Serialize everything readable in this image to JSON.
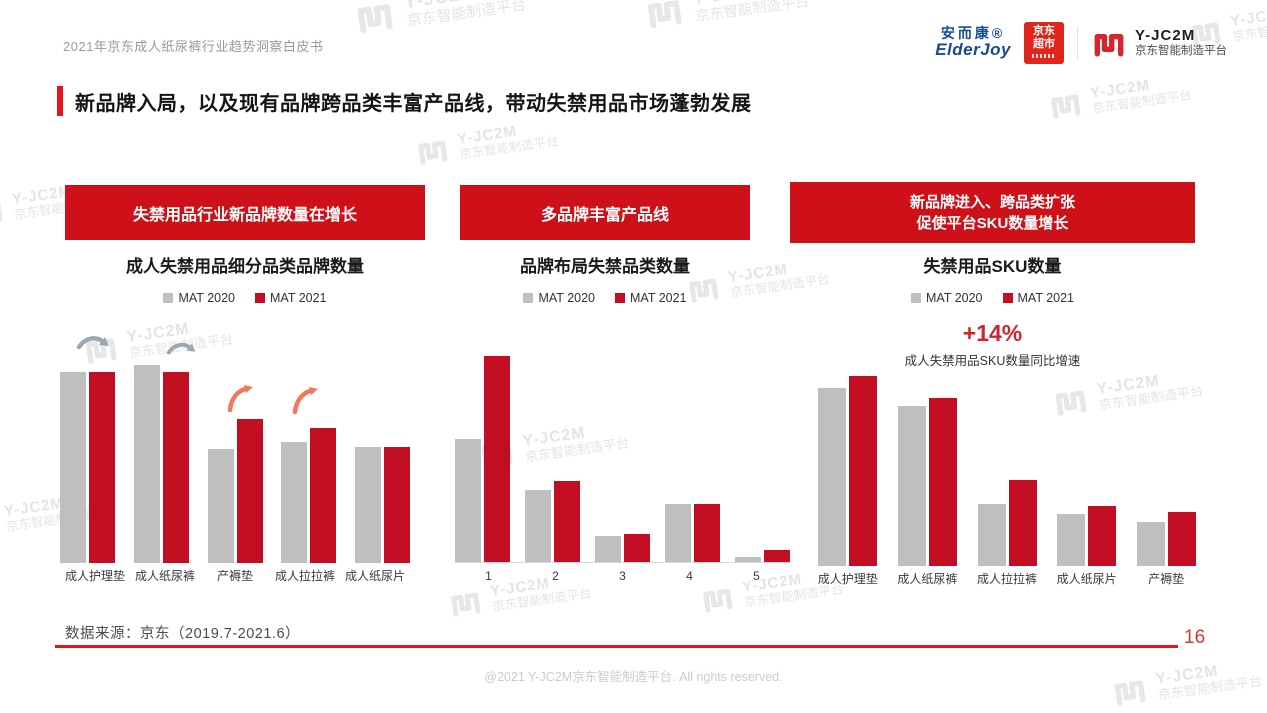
{
  "page": {
    "header_left": "2021年京东成人纸尿裤行业趋势洞察白皮书",
    "title": "新品牌入局，以及现有品牌跨品类丰富产品线，带动失禁用品市场蓬勃发展",
    "source_note": "数据来源：京东（2019.7-2021.6）",
    "page_number": "16",
    "footer": "@2021 Y-JC2M京东智能制造平台. All rights reserved."
  },
  "logos": {
    "elderjoy_cn": "安而康®",
    "elderjoy_en": "ElderJoy",
    "jd_line1": "京东",
    "jd_line2": "超市",
    "yjc2m_name": "Y-JC2M",
    "yjc2m_sub": "京东智能制造平台"
  },
  "watermark": {
    "name": "Y-JC2M",
    "sub": "京东智能制造平台"
  },
  "legend": {
    "mat2020": "MAT 2020",
    "mat2021": "MAT 2021"
  },
  "panels": [
    {
      "banner": "失禁用品行业新品牌数量在增长",
      "chart_title": "成人失禁用品细分品类品牌数量"
    },
    {
      "banner": "多品牌丰富产品线",
      "chart_title": "品牌布局失禁品类数量"
    },
    {
      "banner_line1": "新品牌进入、跨品类扩张",
      "banner_line2": "促使平台SKU数量增长",
      "chart_title": "失禁用品SKU数量",
      "callout_value": "+14%",
      "callout_label": "成人失禁用品SKU数量同比增速"
    }
  ],
  "colors": {
    "banner_red": "#ce1118",
    "bar_2020": "#bfbfbf",
    "bar_2021": "#c30d23",
    "accent_red": "#e8131d",
    "callout_red": "#d0242c",
    "page_number_red": "#d6362f",
    "arrow_gray": "#9aa8b6",
    "arrow_orange": "#f07a58",
    "brand_blue": "#164b92",
    "jd_red": "#e1251b",
    "logo_red": "#d9232e"
  },
  "chart_data": [
    {
      "type": "bar",
      "title": "成人失禁用品细分品类品牌数量",
      "categories": [
        "成人护理垫",
        "成人纸尿裤",
        "产褥垫",
        "成人拉拉裤",
        "成人纸尿片"
      ],
      "series": [
        {
          "name": "MAT 2020",
          "color_key": "bar_2020",
          "values": [
            82,
            85,
            49,
            52,
            50
          ]
        },
        {
          "name": "MAT 2021",
          "color_key": "bar_2021",
          "values": [
            82,
            82,
            62,
            58,
            50
          ]
        }
      ],
      "ylim": [
        0,
        100
      ],
      "value_unit": "relative bar height % (y-axis unlabeled in source)",
      "legend_position": "top",
      "grid": false,
      "annotations": [
        "flat/stable gray arrows over 成人护理垫 and 成人纸尿裤",
        "orange growth arrows over 产褥垫 and 成人拉拉裤"
      ]
    },
    {
      "type": "bar",
      "title": "品牌布局失禁品类数量",
      "categories": [
        "1",
        "2",
        "3",
        "4",
        "5"
      ],
      "series": [
        {
          "name": "MAT 2020",
          "color_key": "bar_2020",
          "values": [
            53,
            31,
            11,
            25,
            2
          ]
        },
        {
          "name": "MAT 2021",
          "color_key": "bar_2021",
          "values": [
            89,
            35,
            12,
            25,
            5
          ]
        }
      ],
      "ylim": [
        0,
        100
      ],
      "value_unit": "relative bar height % (y-axis unlabeled in source)",
      "legend_position": "top",
      "grid": false,
      "baseline_axis": true
    },
    {
      "type": "bar",
      "title": "失禁用品SKU数量",
      "categories": [
        "成人护理垫",
        "成人纸尿裤",
        "成人拉拉裤",
        "成人纸尿片",
        "产褥垫"
      ],
      "series": [
        {
          "name": "MAT 2020",
          "color_key": "bar_2020",
          "values": [
            89,
            80,
            31,
            26,
            22
          ]
        },
        {
          "name": "MAT 2021",
          "color_key": "bar_2021",
          "values": [
            95,
            84,
            43,
            30,
            27
          ]
        }
      ],
      "ylim": [
        0,
        100
      ],
      "value_unit": "relative bar height % (y-axis unlabeled in source)",
      "legend_position": "top",
      "grid": false,
      "annotations": [
        "+14% 成人失禁用品SKU数量同比增速"
      ]
    }
  ]
}
